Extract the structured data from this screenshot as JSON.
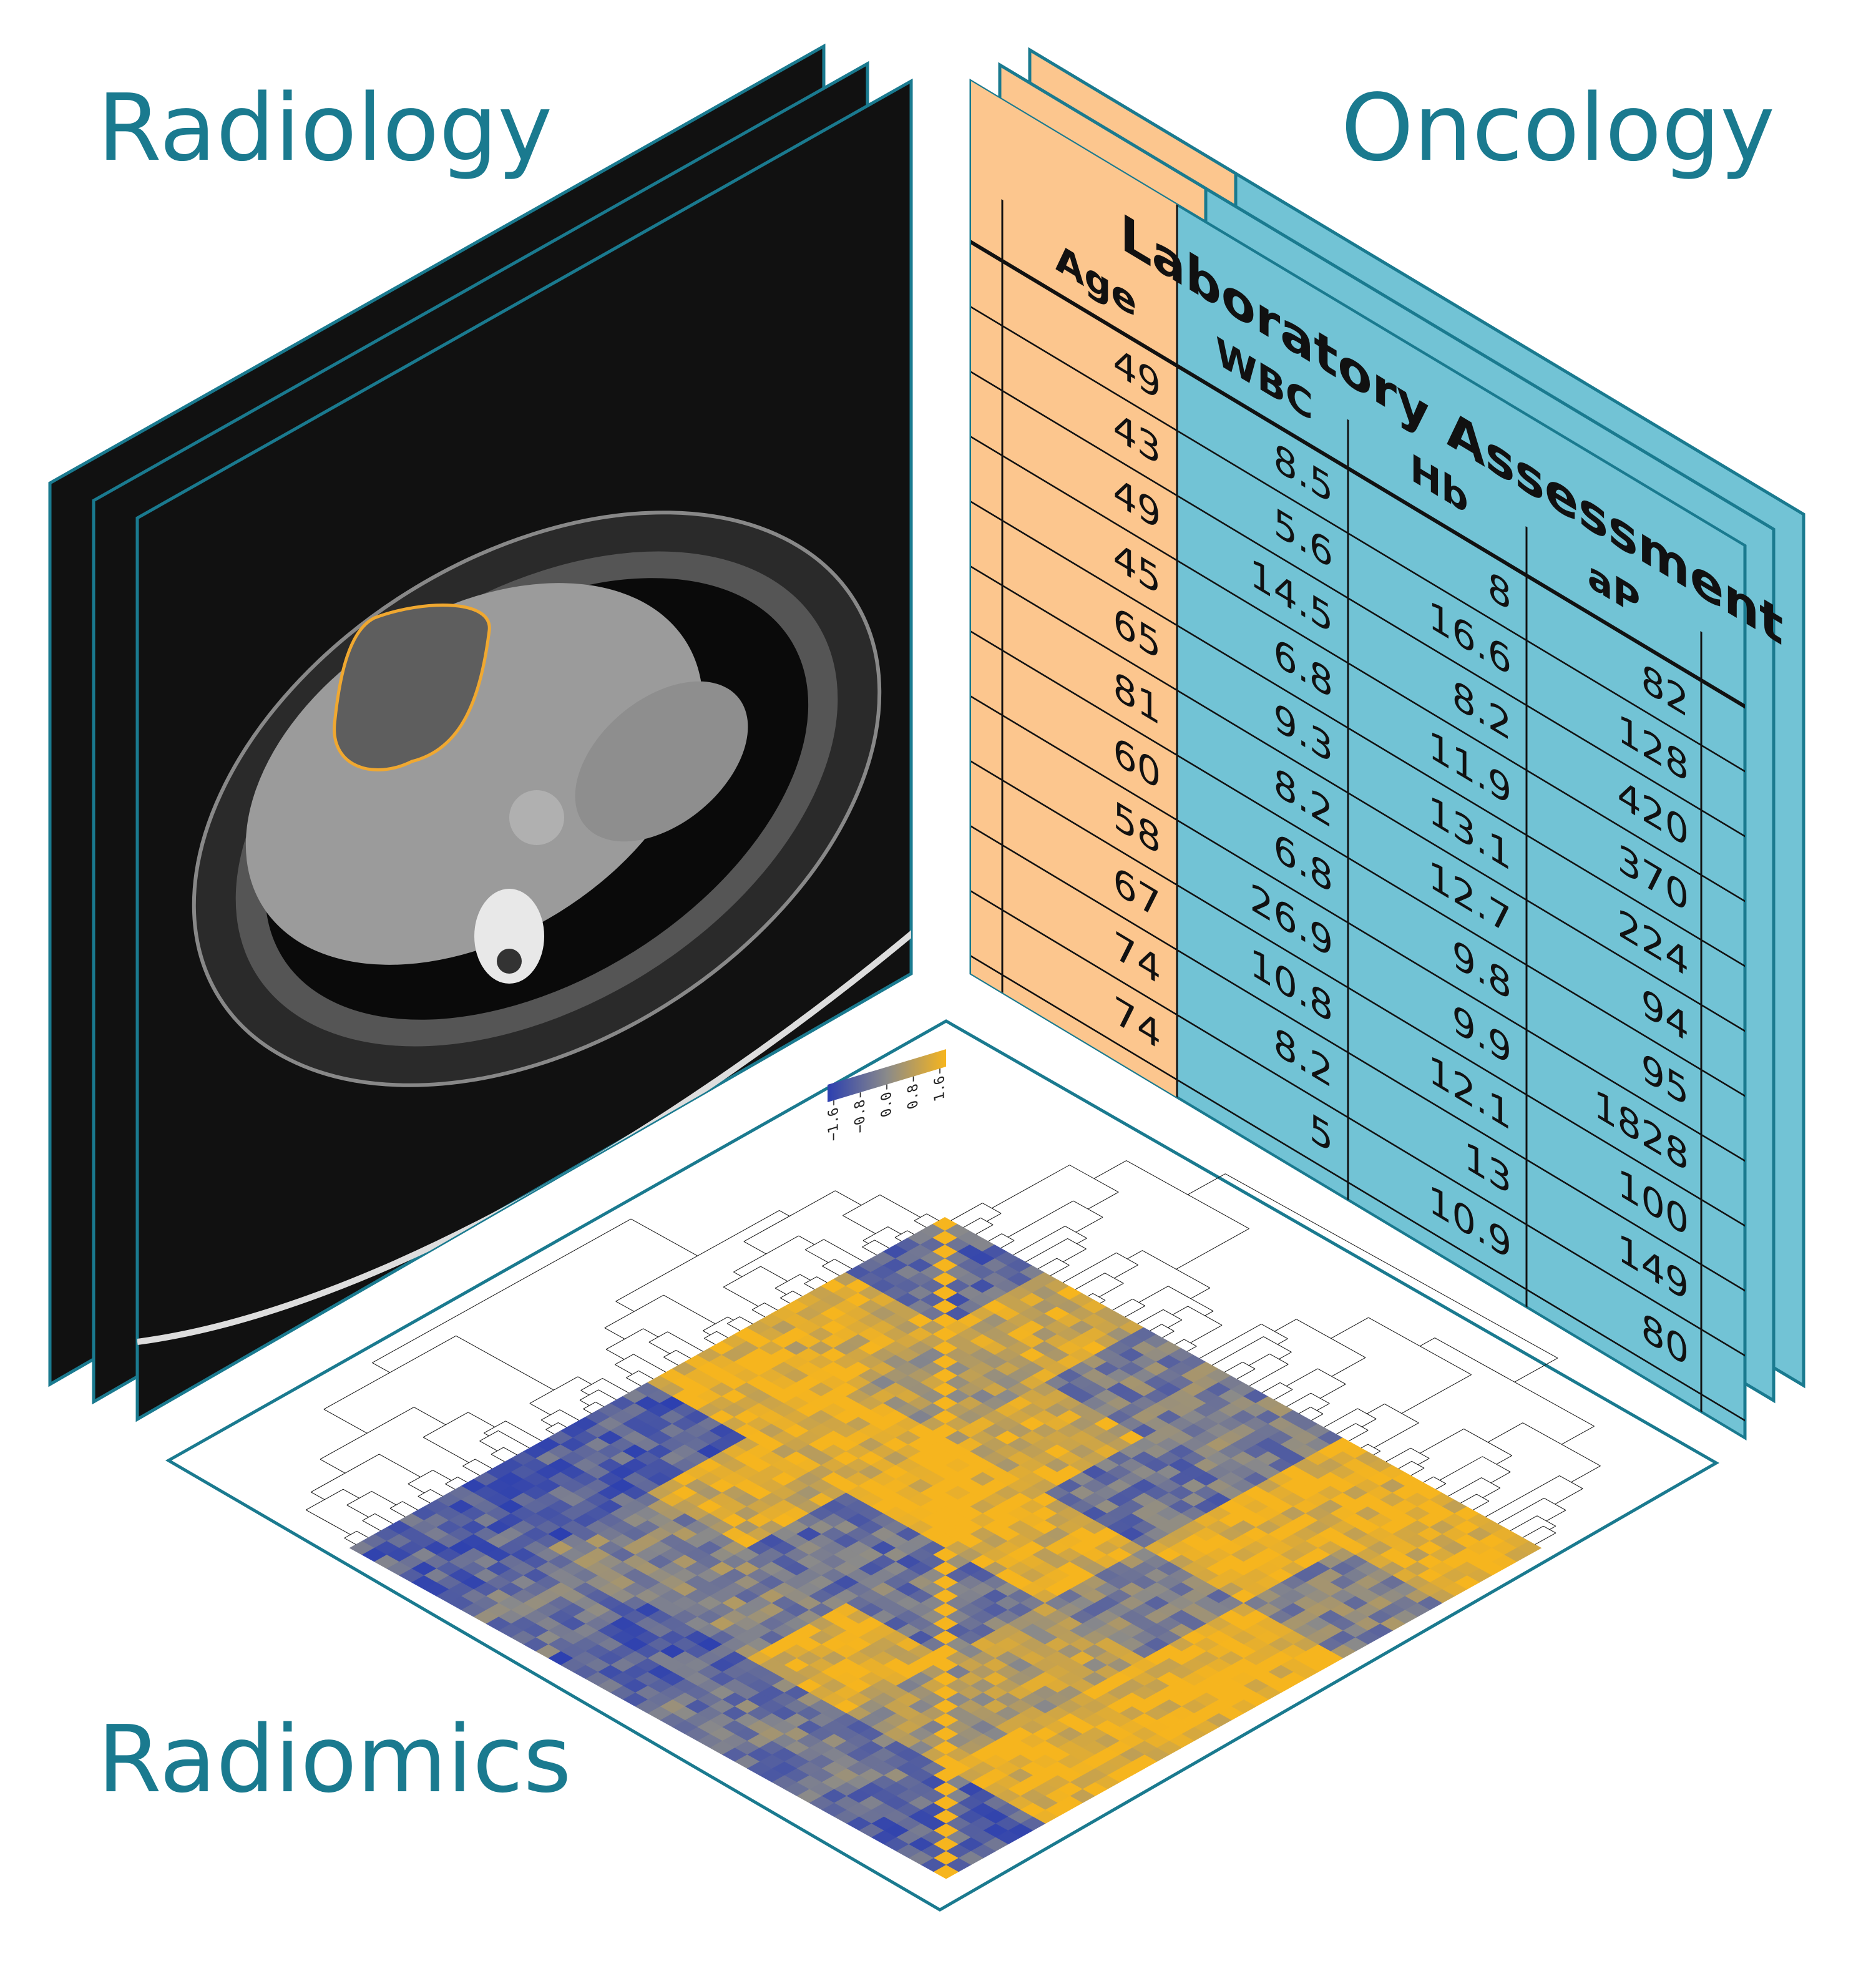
{
  "titles": {
    "radiology": "Radiology",
    "oncology": "Oncology",
    "radiomics": "Radiomics"
  },
  "table": {
    "age_header": "Age",
    "group_header": "Laboratory Assessment",
    "columns": [
      "WBC",
      "Hb",
      "aP"
    ],
    "age": [
      49,
      43,
      49,
      45,
      65,
      81,
      60,
      58,
      67,
      74,
      74
    ],
    "wbc": [
      8.5,
      5.6,
      14.5,
      6.8,
      9.3,
      8.2,
      6.8,
      26.9,
      10.8,
      8.2,
      5
    ],
    "hb": [
      8,
      16.6,
      8.2,
      11.9,
      13.1,
      12.7,
      9.8,
      9.9,
      12.1,
      13,
      10.9
    ],
    "ap": [
      82,
      128,
      420,
      370,
      224,
      94,
      95,
      1828,
      100,
      149,
      80
    ]
  },
  "colorbar": {
    "ticks": [
      {
        "value": 1.6,
        "label": "1.6"
      },
      {
        "value": 0.8,
        "label": "0.8"
      },
      {
        "value": 0,
        "label": "0.0"
      },
      {
        "value": -0.8,
        "label": "−0.8"
      },
      {
        "value": -1.6,
        "label": "−1.6"
      }
    ]
  }
}
